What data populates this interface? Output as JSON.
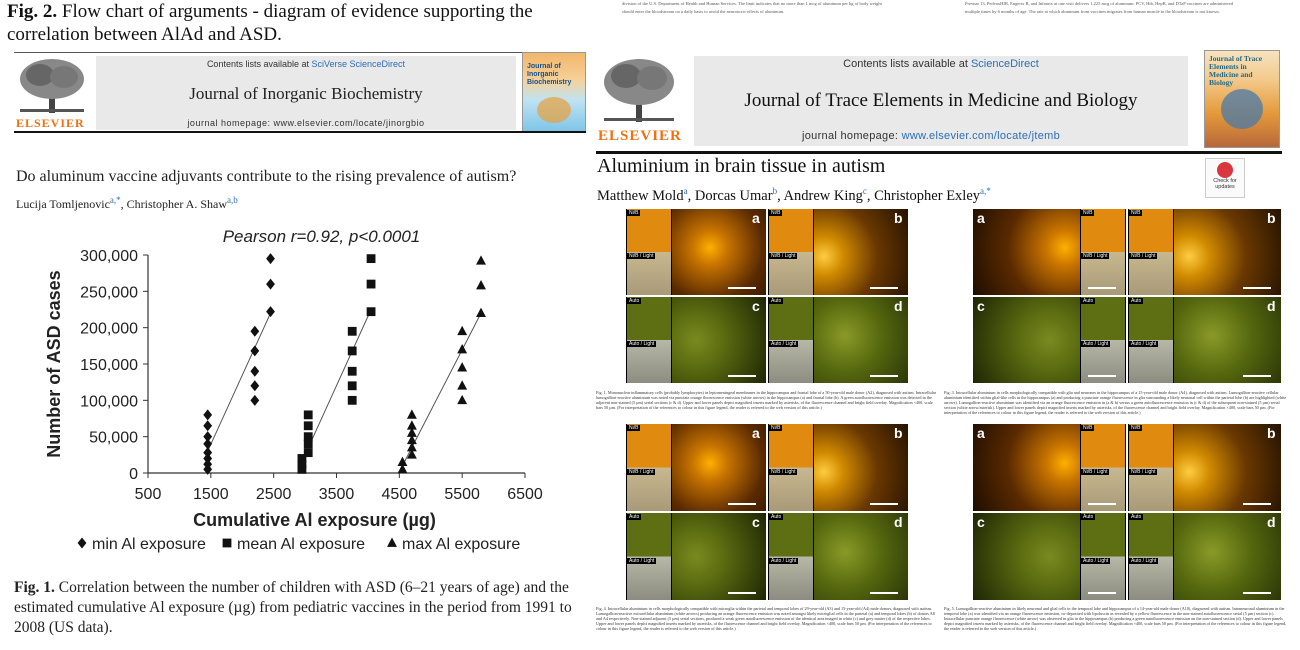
{
  "fig2_caption": {
    "label": "Fig. 2.",
    "text": " Flow chart of arguments - diagram of evidence supporting the correlation between AlAd and ASD."
  },
  "left_paper": {
    "contents_line": "Contents lists available at ",
    "contents_link": "SciVerse ScienceDirect",
    "journal": "Journal of Inorganic Biochemistry",
    "homepage_label": "journal homepage: ",
    "homepage_url": "www.elsevier.com/locate/jinorgbio",
    "publisher": "ELSEVIER",
    "cover_title": "Journal of Inorganic Biochemistry",
    "title": "Do aluminum vaccine adjuvants contribute to the rising prevalence of autism?",
    "authors": [
      {
        "name": "Lucija Tomljenovic",
        "aff": "a,*"
      },
      {
        "name": "Christopher A. Shaw",
        "aff": "a,b"
      }
    ],
    "author_sep": ", "
  },
  "chart_data": {
    "type": "scatter",
    "title": "Pearson r=0.92, p<0.0001",
    "xlabel": "Cumulative Al exposure (µg)",
    "ylabel": "Number of ASD cases",
    "xlim": [
      500,
      6500
    ],
    "ylim": [
      0,
      300000
    ],
    "xticks": [
      500,
      1500,
      2500,
      3500,
      4500,
      5500,
      6500
    ],
    "yticks": [
      0,
      50000,
      100000,
      150000,
      200000,
      250000,
      300000
    ],
    "ytick_labels": [
      "0",
      "50,000",
      "100,000",
      "150,000",
      "200,000",
      "250,000",
      "300,000"
    ],
    "legend_position": "bottom",
    "series": [
      {
        "name": "min Al exposure",
        "marker": "diamond",
        "points": [
          [
            1450,
            5000
          ],
          [
            1450,
            12000
          ],
          [
            1450,
            20000
          ],
          [
            1450,
            28000
          ],
          [
            1450,
            40000
          ],
          [
            1450,
            50000
          ],
          [
            1450,
            65000
          ],
          [
            1450,
            80000
          ],
          [
            2200,
            100000
          ],
          [
            2200,
            120000
          ],
          [
            2200,
            140000
          ],
          [
            2200,
            168000
          ],
          [
            2200,
            195000
          ],
          [
            2450,
            222000
          ],
          [
            2450,
            260000
          ],
          [
            2450,
            295000
          ]
        ],
        "fit": [
          [
            1450,
            30000
          ],
          [
            2450,
            220000
          ]
        ]
      },
      {
        "name": "mean Al exposure",
        "marker": "square",
        "points": [
          [
            2950,
            5000
          ],
          [
            2950,
            12000
          ],
          [
            2950,
            20000
          ],
          [
            3050,
            28000
          ],
          [
            3050,
            40000
          ],
          [
            3050,
            50000
          ],
          [
            3050,
            65000
          ],
          [
            3050,
            80000
          ],
          [
            3750,
            100000
          ],
          [
            3750,
            120000
          ],
          [
            3750,
            140000
          ],
          [
            3750,
            168000
          ],
          [
            3750,
            195000
          ],
          [
            4050,
            222000
          ],
          [
            4050,
            260000
          ],
          [
            4050,
            295000
          ]
        ],
        "fit": [
          [
            3000,
            25000
          ],
          [
            4050,
            225000
          ]
        ]
      },
      {
        "name": "max Al exposure",
        "marker": "triangle",
        "points": [
          [
            4550,
            5000
          ],
          [
            4550,
            15000
          ],
          [
            4700,
            25000
          ],
          [
            4700,
            35000
          ],
          [
            4700,
            45000
          ],
          [
            4700,
            55000
          ],
          [
            4700,
            65000
          ],
          [
            4700,
            80000
          ],
          [
            5500,
            100000
          ],
          [
            5500,
            120000
          ],
          [
            5500,
            145000
          ],
          [
            5500,
            170000
          ],
          [
            5500,
            195000
          ],
          [
            5800,
            220000
          ],
          [
            5800,
            258000
          ],
          [
            5800,
            292000
          ]
        ],
        "fit": [
          [
            4550,
            10000
          ],
          [
            5800,
            220000
          ]
        ]
      }
    ]
  },
  "fig1_caption": {
    "label": "Fig. 1.",
    "text": " Correlation between the number of children with ASD (6–21 years of age) and the estimated cumulative Al exposure (µg) from pediatric vaccines in the period from 1991 to 2008 (US data)."
  },
  "right_paper": {
    "top_text_left": "should enter the bloodstream on a daily basis to avoid the neurotoxic effects of aluminum.",
    "top_text_left2": "division of the U.S. Department of Health and Human Services. The limit indicates that no more than 1 mcg of aluminum per kg of body weight",
    "top_text_right": "Prevnar 13, PedvaxHIB, Engerix B, and Infanrix at one visit delivers 1,225 mcg of aluminum. PCV, Hib, HepB, and DTaP vaccines are administered",
    "top_text_right2": "multiple times by 6 months of age. The rate at which aluminum from vaccines migrates from human muscle to the bloodstream is not known.",
    "contents_line": "Contents lists available at ",
    "contents_link": "ScienceDirect",
    "journal": "Journal of Trace Elements in Medicine and Biology",
    "homepage_label": "journal homepage: ",
    "homepage_url": "www.elsevier.com/locate/jtemb",
    "publisher": "ELSEVIER",
    "cover_title": "Journal of Trace Elements in Medicine and Biology",
    "title": "Aluminium in brain tissue in autism",
    "authors": [
      {
        "name": "Matthew Mold",
        "aff": "a"
      },
      {
        "name": "Dorcas Umar",
        "aff": "b"
      },
      {
        "name": "Andrew King",
        "aff": "c"
      },
      {
        "name": "Christopher Exley",
        "aff": "a,*"
      }
    ],
    "check_updates": "Check for updates",
    "panel_labels": [
      "a",
      "b",
      "c",
      "d"
    ],
    "tag_nir": "Ni/B",
    "tag_nir_light": "Ni/B / Light",
    "tag_auto": "Auto",
    "tag_auto_light": "Auto / Light",
    "legend_fig1": "Fig. 1. Mononuclear inflammatory cells (probably lymphocytes) in leptomeningeal membranes in the hippocampus and frontal lobe of a 50-year-old male donor (A2), diagnosed with autism. Intracellular lumogallion-reactive aluminium was noted via punctate orange fluorescence emission (white arrows) in the hippocampus (a) and frontal lobe (b). A green autofluorescence emission was detected in the adjacent non-stained (5 µm) serial sections (c & d). Upper and lower panels depict magnified inserts marked by asterisks, of the fluorescence channel and bright field overlay. Magnification ×400, scale bars 50 µm. (For interpretation of the references to colour in this figure legend, the reader is referred to the web version of this article.)",
    "legend_fig3": "Fig. 3. Intracellular aluminium in cells morphologically compatible with glia and neurones in the hippocampus of a 15-year-old male donor (A4), diagnosed with autism. Lumogallion-reactive cellular aluminium identified within glial-like cells in the hippocampus (a) and producing a punctate orange fluorescence in glia surrounding a likely neuronal cell within the parietal lobe (b) are highlighted (white arrows). Lumogallion-reactive aluminium was identified via an orange fluorescence emission in (a & b) versus a green autofluorescence emission in (c & d) of the subsequent non-stained (5 µm) serial section (white arrow/asterisk). Upper and lower panels depict magnified inserts marked by asterisks, of the fluorescence channel and bright field overlay. Magnification ×400, scale bars 50 µm. (For interpretation of the references to colour in this figure legend, the reader is referred to the web version of this article.)",
    "legend_fig4": "Fig. 4. Intracellular aluminium in cells morphologically compatible with microglia within the parietal and temporal lobes of 29-year-old (A3) and 15-year-old (A4) male donors, diagnosed with autism. Lumogallion-reactive extracellular aluminium (white arrows) producing an orange fluorescence emission was noted amongst likely microglial cells in the parietal (a) and temporal lobes (b) of donors A8 and A4 respectively. Non-stained adjacent (5 µm) serial sections, produced a weak green autofluorescence emission of the identical area imaged in white (c) and grey matter (d) of the respective lobes. Upper and lower panels depict magnified inserts marked by asterisks, of the fluorescence channel and bright field overlay. Magnification ×400, scale bars 50 µm. (For interpretation of the references to colour in this figure legend, the reader is referred to the web version of this article.)",
    "legend_fig5": "Fig. 5. Lumogallion-reactive aluminium in likely neuronal and glial cells in the temporal lobe and hippocampus of a 14-year-old male donor (A10), diagnosed with autism. Intraneuronal aluminium in the temporal lobe (a) was identified via an orange fluorescence emission, co-deposited with lipofuscin as revealed by a yellow fluorescence in the non-stained autofluorescence serial (5 µm) section (c). Intracellular punctate orange fluorescence (white arrow) was observed in glia in the hippocampus (b) producing a green autofluorescence emission on the non-stained section (d). Upper and lower panels depict magnified inserts marked by asterisks, of the fluorescence channel and bright field overlay. Magnification ×400, scale bars 50 µm. (For interpretation of the references to colour in this figure legend, the reader is referred to the web version of this article.)"
  },
  "colors": {
    "elsevier_orange": "#f07010",
    "link_blue": "#2a6ebb",
    "header_grey": "#e9e9e9",
    "orange_fluor": "#c87400",
    "green_auto": "#5a6a10"
  }
}
